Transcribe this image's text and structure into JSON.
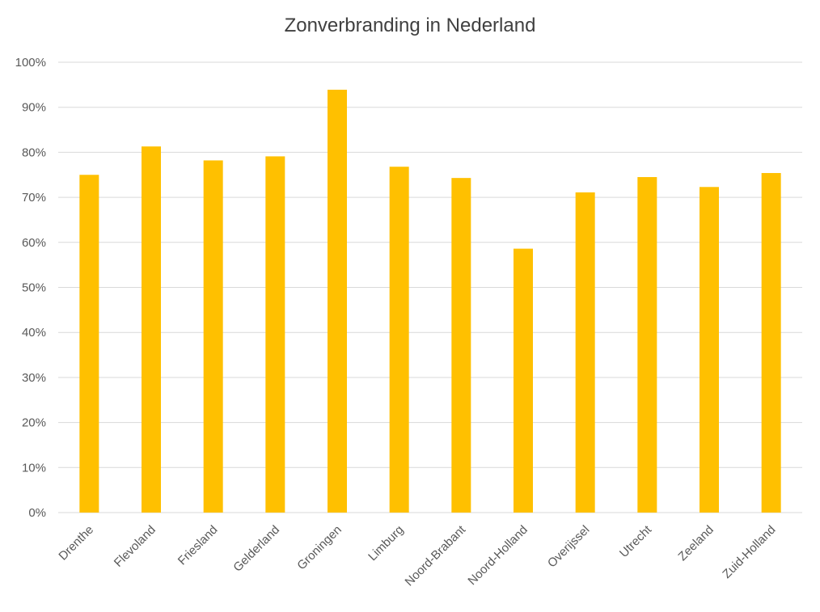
{
  "chart_data": {
    "type": "bar",
    "title": "Zonverbranding in Nederland",
    "xlabel": "",
    "ylabel": "",
    "categories": [
      "Drenthe",
      "Flevoland",
      "Friesland",
      "Gelderland",
      "Groningen",
      "Limburg",
      "Noord-Brabant",
      "Noord-Holland",
      "Overijssel",
      "Utrecht",
      "Zeeland",
      "Zuid-Holland"
    ],
    "values": [
      75,
      81.3,
      78.2,
      79.1,
      93.9,
      76.8,
      74.3,
      58.6,
      71.1,
      74.5,
      72.3,
      75.4
    ],
    "ylim": [
      0,
      100
    ],
    "yticks": [
      "0%",
      "10%",
      "20%",
      "30%",
      "40%",
      "50%",
      "60%",
      "70%",
      "80%",
      "90%",
      "100%"
    ],
    "grid": true,
    "legend": "none",
    "bar_color": "#FFC000",
    "grid_color": "#D9D9D9"
  }
}
